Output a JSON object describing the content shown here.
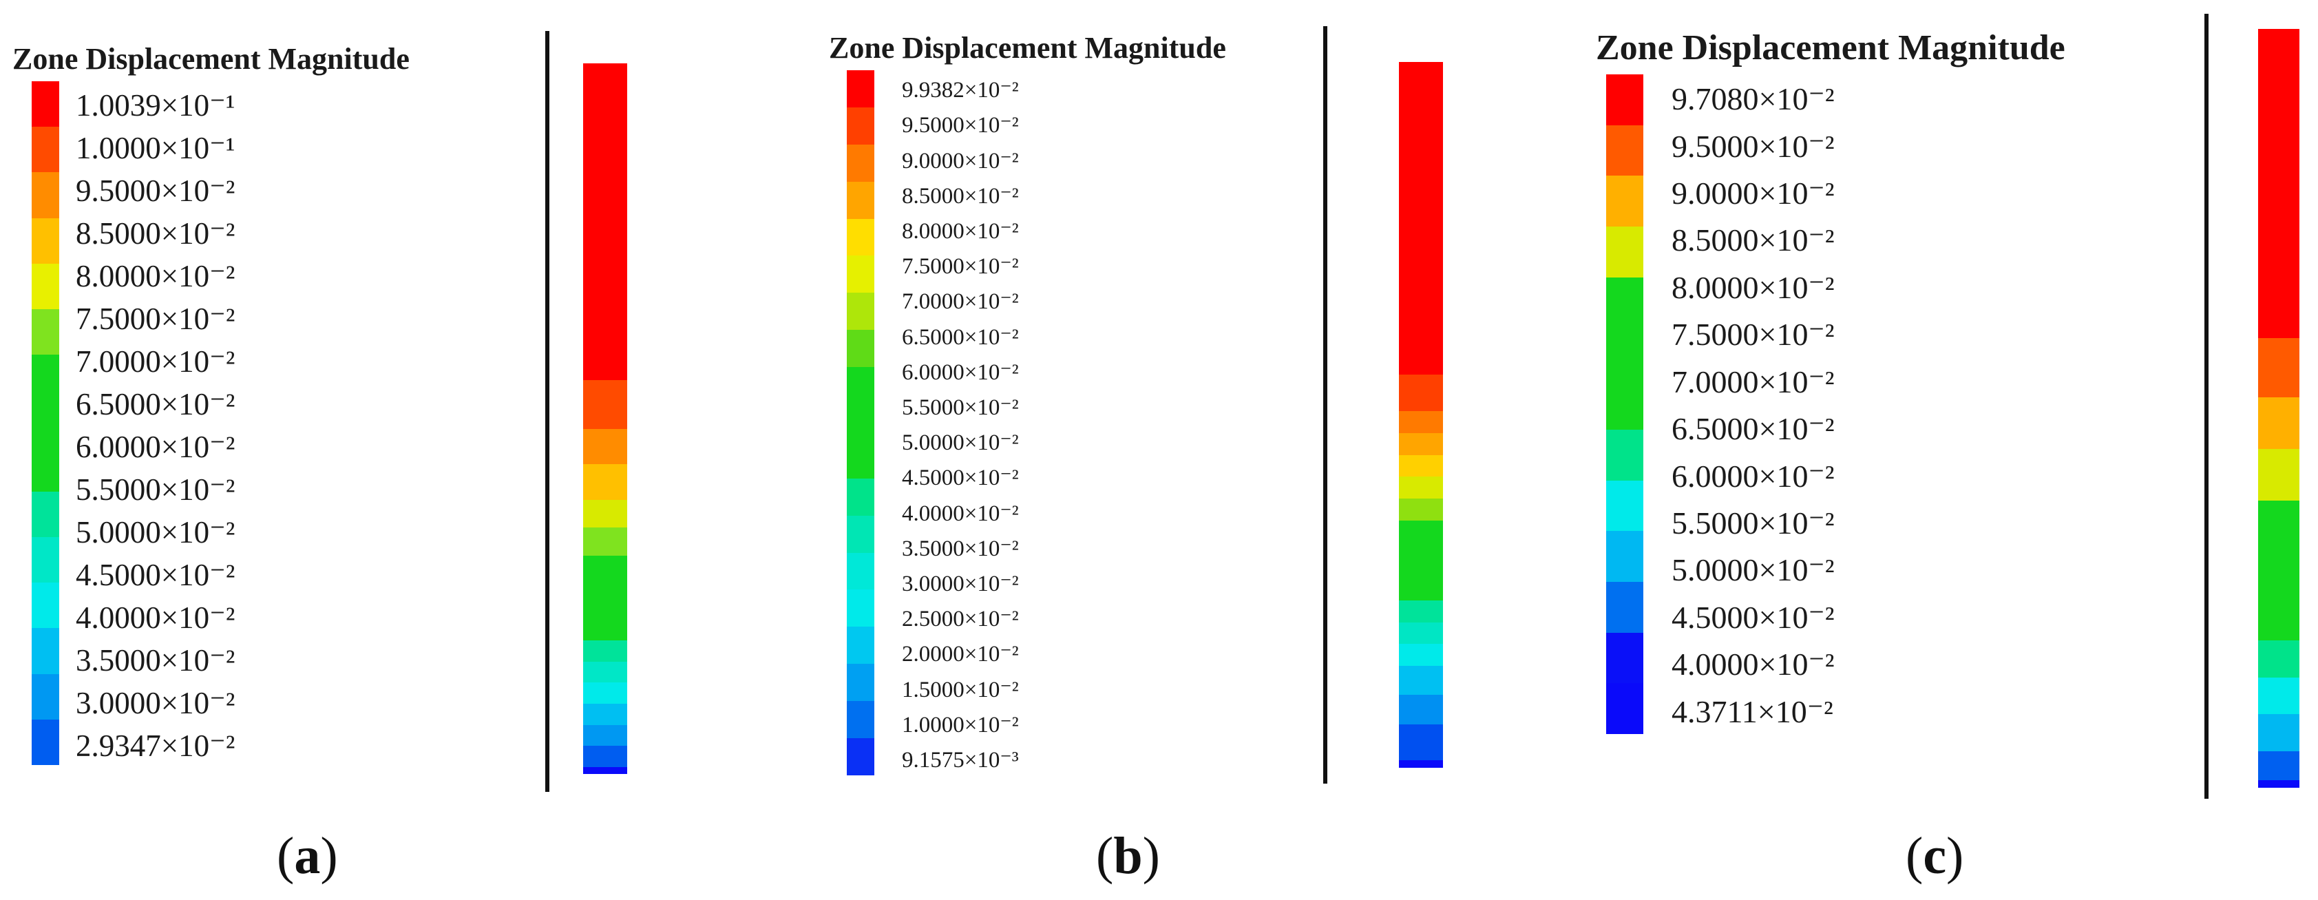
{
  "panels": [
    {
      "id": "a",
      "title": "Zone Displacement Magnitude",
      "caption_open": "(",
      "caption_letter": "a",
      "caption_close": ")",
      "legend": [
        {
          "label": "1.0039×10⁻¹",
          "color": "#ff0000"
        },
        {
          "label": "1.0000×10⁻¹",
          "color": "#ff4b00"
        },
        {
          "label": "9.5000×10⁻²",
          "color": "#ff8c00"
        },
        {
          "label": "8.5000×10⁻²",
          "color": "#ffc000"
        },
        {
          "label": "8.0000×10⁻²",
          "color": "#e8f000"
        },
        {
          "label": "7.5000×10⁻²",
          "color": "#7fe31f"
        },
        {
          "label": "7.0000×10⁻²",
          "color": "#14d81e"
        },
        {
          "label": "6.5000×10⁻²",
          "color": "#14d81e"
        },
        {
          "label": "6.0000×10⁻²",
          "color": "#14d81e"
        },
        {
          "label": "5.5000×10⁻²",
          "color": "#00e39a"
        },
        {
          "label": "5.0000×10⁻²",
          "color": "#00e7c7"
        },
        {
          "label": "4.5000×10⁻²",
          "color": "#00eaea"
        },
        {
          "label": "4.0000×10⁻²",
          "color": "#00bff2"
        },
        {
          "label": "3.5000×10⁻²",
          "color": "#0098f2"
        },
        {
          "label": "3.0000×10⁻²",
          "color": "#005df0"
        },
        {
          "label": "2.9347×10⁻²",
          "color": "#0a0afa"
        }
      ],
      "column": [
        {
          "color": "#ff0000",
          "weight": 45
        },
        {
          "color": "#ff4b00",
          "weight": 7
        },
        {
          "color": "#ff8c00",
          "weight": 5
        },
        {
          "color": "#ffc000",
          "weight": 5
        },
        {
          "color": "#d8ea00",
          "weight": 4
        },
        {
          "color": "#7fe31f",
          "weight": 4
        },
        {
          "color": "#14d81e",
          "weight": 12
        },
        {
          "color": "#00e39a",
          "weight": 3
        },
        {
          "color": "#00e7c7",
          "weight": 3
        },
        {
          "color": "#00eaea",
          "weight": 3
        },
        {
          "color": "#00bff2",
          "weight": 3
        },
        {
          "color": "#0098f2",
          "weight": 3
        },
        {
          "color": "#005df0",
          "weight": 3
        },
        {
          "color": "#0a0afa",
          "weight": 1
        }
      ]
    },
    {
      "id": "b",
      "title": "Zone Displacement Magnitude",
      "caption_open": "(",
      "caption_letter": "b",
      "caption_close": ")",
      "legend": [
        {
          "label": "9.9382×10⁻²",
          "color": "#ff0000"
        },
        {
          "label": "9.5000×10⁻²",
          "color": "#ff4000"
        },
        {
          "label": "9.0000×10⁻²",
          "color": "#ff7a00"
        },
        {
          "label": "8.5000×10⁻²",
          "color": "#ffa500"
        },
        {
          "label": "8.0000×10⁻²",
          "color": "#ffde00"
        },
        {
          "label": "7.5000×10⁻²",
          "color": "#e6f000"
        },
        {
          "label": "7.0000×10⁻²",
          "color": "#aee60a"
        },
        {
          "label": "6.5000×10⁻²",
          "color": "#5fdb17"
        },
        {
          "label": "6.0000×10⁻²",
          "color": "#14d81e"
        },
        {
          "label": "5.5000×10⁻²",
          "color": "#14d81e"
        },
        {
          "label": "5.0000×10⁻²",
          "color": "#14d81e"
        },
        {
          "label": "4.5000×10⁻²",
          "color": "#00e38a"
        },
        {
          "label": "4.0000×10⁻²",
          "color": "#00e6b4"
        },
        {
          "label": "3.5000×10⁻²",
          "color": "#00e8d8"
        },
        {
          "label": "3.0000×10⁻²",
          "color": "#00eaea"
        },
        {
          "label": "2.5000×10⁻²",
          "color": "#00c8f0"
        },
        {
          "label": "2.0000×10⁻²",
          "color": "#00a0f2"
        },
        {
          "label": "1.5000×10⁻²",
          "color": "#0070f0"
        },
        {
          "label": "1.0000×10⁻²",
          "color": "#0a30f5"
        },
        {
          "label": "9.1575×10⁻³",
          "color": "#0a0afa"
        }
      ],
      "column": [
        {
          "color": "#ff0000",
          "weight": 43
        },
        {
          "color": "#ff4000",
          "weight": 5
        },
        {
          "color": "#ff7a00",
          "weight": 3
        },
        {
          "color": "#ffa500",
          "weight": 3
        },
        {
          "color": "#ffd000",
          "weight": 3
        },
        {
          "color": "#d8ea00",
          "weight": 3
        },
        {
          "color": "#8fe010",
          "weight": 3
        },
        {
          "color": "#14d81e",
          "weight": 11
        },
        {
          "color": "#00e39a",
          "weight": 3
        },
        {
          "color": "#00e6c4",
          "weight": 3
        },
        {
          "color": "#00eaea",
          "weight": 3
        },
        {
          "color": "#00c0f2",
          "weight": 4
        },
        {
          "color": "#0090f2",
          "weight": 4
        },
        {
          "color": "#0050f0",
          "weight": 5
        },
        {
          "color": "#0a0afa",
          "weight": 1
        }
      ]
    },
    {
      "id": "c",
      "title": "Zone Displacement Magnitude",
      "caption_open": "(",
      "caption_letter": "c",
      "caption_close": ")",
      "legend": [
        {
          "label": "9.7080×10⁻²",
          "color": "#ff0000"
        },
        {
          "label": "9.5000×10⁻²",
          "color": "#ff5a00"
        },
        {
          "label": "9.0000×10⁻²",
          "color": "#ffb000"
        },
        {
          "label": "8.5000×10⁻²",
          "color": "#d8ea00"
        },
        {
          "label": "8.0000×10⁻²",
          "color": "#14d81e"
        },
        {
          "label": "7.5000×10⁻²",
          "color": "#14d81e"
        },
        {
          "label": "7.0000×10⁻²",
          "color": "#14d81e"
        },
        {
          "label": "6.5000×10⁻²",
          "color": "#00e38a"
        },
        {
          "label": "6.0000×10⁻²",
          "color": "#00eaea"
        },
        {
          "label": "5.5000×10⁻²",
          "color": "#00b8f2"
        },
        {
          "label": "5.0000×10⁻²",
          "color": "#0070f0"
        },
        {
          "label": "4.5000×10⁻²",
          "color": "#0a10f8"
        },
        {
          "label": "4.0000×10⁻²",
          "color": "#0a0afa"
        },
        {
          "label": "4.3711×10⁻²",
          "color": "#0a0afa"
        }
      ],
      "column": [
        {
          "color": "#ff0000",
          "weight": 42
        },
        {
          "color": "#ff5a00",
          "weight": 8
        },
        {
          "color": "#ffb000",
          "weight": 7
        },
        {
          "color": "#d8ea00",
          "weight": 7
        },
        {
          "color": "#14d81e",
          "weight": 19
        },
        {
          "color": "#00e38a",
          "weight": 5
        },
        {
          "color": "#00eaea",
          "weight": 5
        },
        {
          "color": "#00b8f2",
          "weight": 5
        },
        {
          "color": "#0060f0",
          "weight": 4
        },
        {
          "color": "#0a0afa",
          "weight": 1
        }
      ]
    }
  ]
}
